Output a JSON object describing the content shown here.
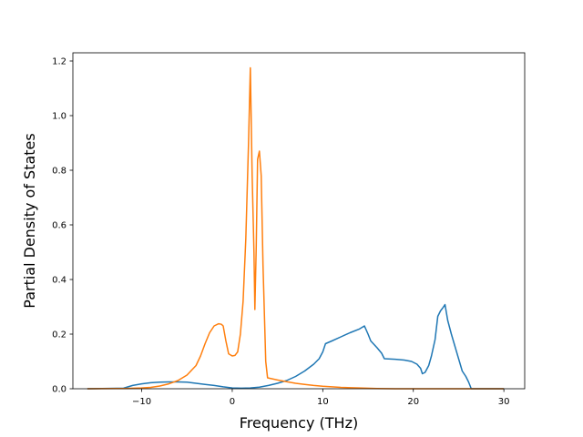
{
  "chart_data": {
    "type": "line",
    "title": "",
    "xlabel": "Frequency (THz)",
    "ylabel": "Partial Density of States",
    "xlim": [
      -17.6,
      32.3
    ],
    "ylim": [
      0.0,
      1.23
    ],
    "grid": false,
    "legend": "none",
    "x_ticks": [
      -10,
      0,
      10,
      20,
      30
    ],
    "x_tick_labels": [
      "−10",
      "0",
      "10",
      "20",
      "30"
    ],
    "y_ticks": [
      0.0,
      0.2,
      0.4,
      0.6,
      0.8,
      1.0,
      1.2
    ],
    "y_tick_labels": [
      "0.0",
      "0.2",
      "0.4",
      "0.6",
      "0.8",
      "1.0",
      "1.2"
    ],
    "series": [
      {
        "color": "#1f77b4",
        "points": [
          [
            -16.0,
            0.0
          ],
          [
            -12.0,
            0.002
          ],
          [
            -11.0,
            0.012
          ],
          [
            -10.0,
            0.018
          ],
          [
            -9.0,
            0.022
          ],
          [
            -8.0,
            0.024
          ],
          [
            -7.0,
            0.025
          ],
          [
            -6.0,
            0.025
          ],
          [
            -5.0,
            0.024
          ],
          [
            -4.0,
            0.02
          ],
          [
            -3.0,
            0.016
          ],
          [
            -2.0,
            0.012
          ],
          [
            -1.0,
            0.007
          ],
          [
            0.0,
            0.003
          ],
          [
            1.0,
            0.002
          ],
          [
            2.0,
            0.003
          ],
          [
            3.0,
            0.006
          ],
          [
            4.0,
            0.012
          ],
          [
            5.0,
            0.02
          ],
          [
            6.0,
            0.03
          ],
          [
            7.0,
            0.045
          ],
          [
            8.0,
            0.065
          ],
          [
            9.0,
            0.09
          ],
          [
            9.6,
            0.11
          ],
          [
            10.0,
            0.135
          ],
          [
            10.3,
            0.165
          ],
          [
            11.0,
            0.175
          ],
          [
            12.0,
            0.19
          ],
          [
            13.0,
            0.205
          ],
          [
            14.0,
            0.218
          ],
          [
            14.6,
            0.23
          ],
          [
            15.0,
            0.2
          ],
          [
            15.3,
            0.175
          ],
          [
            16.0,
            0.15
          ],
          [
            16.5,
            0.13
          ],
          [
            16.8,
            0.11
          ],
          [
            18.0,
            0.108
          ],
          [
            19.0,
            0.105
          ],
          [
            19.8,
            0.1
          ],
          [
            20.4,
            0.09
          ],
          [
            20.8,
            0.075
          ],
          [
            21.0,
            0.055
          ],
          [
            21.3,
            0.06
          ],
          [
            21.7,
            0.085
          ],
          [
            22.0,
            0.12
          ],
          [
            22.4,
            0.18
          ],
          [
            22.7,
            0.265
          ],
          [
            23.0,
            0.285
          ],
          [
            23.3,
            0.298
          ],
          [
            23.5,
            0.308
          ],
          [
            23.8,
            0.25
          ],
          [
            24.2,
            0.2
          ],
          [
            24.6,
            0.155
          ],
          [
            25.0,
            0.11
          ],
          [
            25.4,
            0.065
          ],
          [
            25.8,
            0.045
          ],
          [
            26.1,
            0.025
          ],
          [
            26.4,
            0.0
          ],
          [
            30.0,
            0.0
          ]
        ]
      },
      {
        "color": "#ff7f0e",
        "points": [
          [
            -16.0,
            0.0
          ],
          [
            -12.0,
            0.001
          ],
          [
            -10.0,
            0.003
          ],
          [
            -9.0,
            0.005
          ],
          [
            -8.0,
            0.01
          ],
          [
            -7.0,
            0.018
          ],
          [
            -6.0,
            0.03
          ],
          [
            -5.0,
            0.05
          ],
          [
            -4.0,
            0.085
          ],
          [
            -3.5,
            0.12
          ],
          [
            -3.0,
            0.165
          ],
          [
            -2.5,
            0.205
          ],
          [
            -2.0,
            0.23
          ],
          [
            -1.5,
            0.238
          ],
          [
            -1.2,
            0.236
          ],
          [
            -1.0,
            0.23
          ],
          [
            -0.7,
            0.175
          ],
          [
            -0.4,
            0.128
          ],
          [
            0.0,
            0.12
          ],
          [
            0.3,
            0.122
          ],
          [
            0.6,
            0.135
          ],
          [
            0.9,
            0.2
          ],
          [
            1.2,
            0.32
          ],
          [
            1.5,
            0.55
          ],
          [
            1.8,
            0.9
          ],
          [
            2.0,
            1.175
          ],
          [
            2.2,
            0.78
          ],
          [
            2.4,
            0.5
          ],
          [
            2.5,
            0.29
          ],
          [
            2.65,
            0.52
          ],
          [
            2.8,
            0.84
          ],
          [
            3.0,
            0.87
          ],
          [
            3.2,
            0.78
          ],
          [
            3.4,
            0.45
          ],
          [
            3.7,
            0.1
          ],
          [
            3.9,
            0.04
          ],
          [
            5.0,
            0.032
          ],
          [
            6.0,
            0.026
          ],
          [
            7.0,
            0.02
          ],
          [
            8.0,
            0.016
          ],
          [
            9.0,
            0.012
          ],
          [
            10.0,
            0.009
          ],
          [
            12.0,
            0.005
          ],
          [
            14.0,
            0.003
          ],
          [
            16.0,
            0.001
          ],
          [
            18.0,
            0.0
          ],
          [
            30.0,
            0.0
          ]
        ]
      }
    ]
  }
}
